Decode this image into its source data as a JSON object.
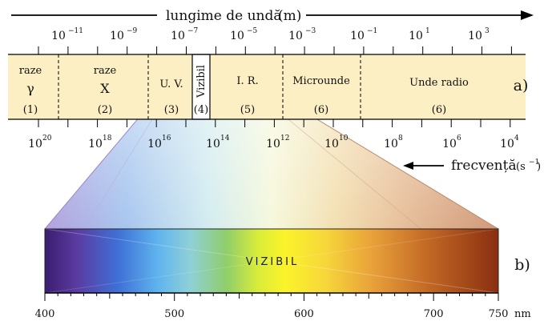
{
  "top_axis": {
    "title": "lungime de undă",
    "unit": "(m)",
    "base": "10",
    "exponents": [
      "−11",
      "−9",
      "−7",
      "−5",
      "−3",
      "−1",
      "1",
      "3"
    ]
  },
  "bottom_axis": {
    "title": "frecvență",
    "unit": "(s",
    "unit_exp": "−1",
    "unit_close": ")",
    "base": "10",
    "exponents": [
      "20",
      "18",
      "16",
      "14",
      "12",
      "10",
      "8",
      "6",
      "4"
    ]
  },
  "bands": [
    {
      "name": "raze",
      "sub": "γ",
      "number": "(1)"
    },
    {
      "name": "raze",
      "sub": "X",
      "number": "(2)"
    },
    {
      "name": "U. V.",
      "number": "(3)"
    },
    {
      "name": "Vizibil",
      "number": "(4)"
    },
    {
      "name": "I. R.",
      "number": "(5)"
    },
    {
      "name": "Microunde",
      "number": "(6)"
    },
    {
      "name": "Unde radio",
      "number": "(6)"
    }
  ],
  "labels": {
    "a": "a)",
    "b": "b)"
  },
  "visible": {
    "title": "VIZIBIL",
    "ticks": [
      "400",
      "500",
      "600",
      "700",
      "750"
    ],
    "unit": "nm",
    "range": [
      400,
      750
    ]
  },
  "colors": {
    "band_fill": "#fcefc4",
    "visible_start": "#3b1d70",
    "visible_end": "#8a2f10"
  }
}
